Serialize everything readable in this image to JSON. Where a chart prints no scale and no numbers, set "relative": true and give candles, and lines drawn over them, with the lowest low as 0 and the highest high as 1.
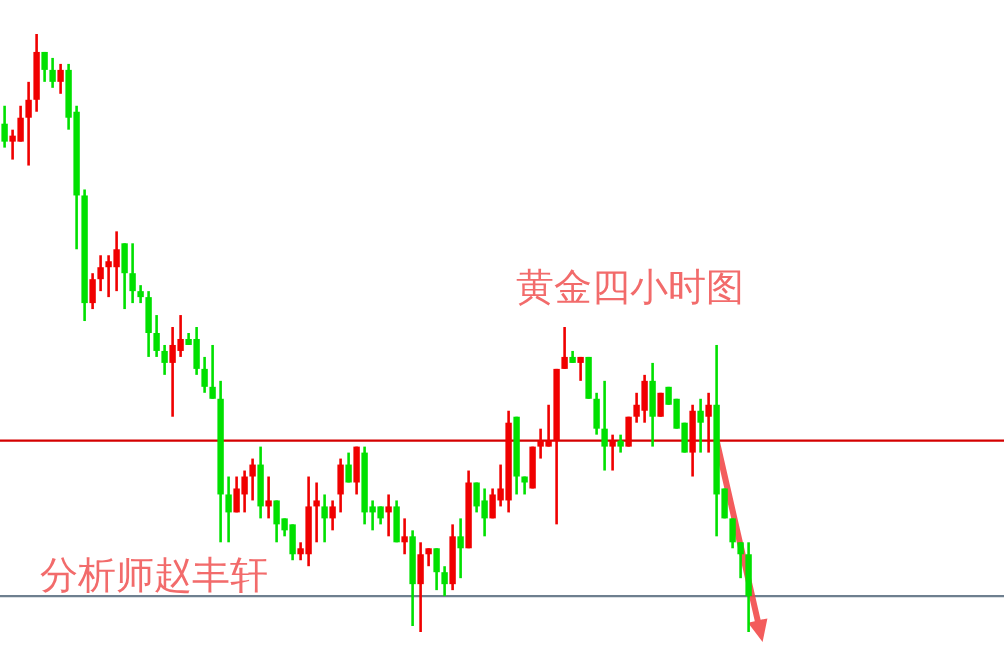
{
  "chart_data": {
    "type": "candlestick",
    "title": "黄金四小时图",
    "annotations": [
      "分析师赵丰轩"
    ],
    "relative": true,
    "categories": [
      null,
      null,
      null,
      null,
      null,
      null,
      null,
      null,
      null,
      null,
      null,
      null,
      null,
      null,
      null,
      null,
      null,
      null,
      null,
      null,
      null,
      null,
      null,
      null,
      null,
      null,
      null,
      null,
      null,
      null,
      null,
      null,
      null,
      null,
      null,
      null,
      null,
      null,
      null,
      null,
      null,
      null,
      null,
      null,
      null,
      null,
      null,
      null,
      null,
      null,
      null,
      null,
      null,
      null,
      null,
      null,
      null,
      null,
      null,
      null,
      null,
      null,
      null,
      null,
      null,
      null,
      null,
      null,
      null,
      null,
      null,
      null,
      null,
      null,
      null,
      null,
      null,
      null,
      null,
      null,
      null,
      null,
      null,
      null,
      null,
      null,
      null,
      null,
      null,
      null,
      null,
      null,
      null,
      null
    ],
    "ohlc": [
      [
        0.85,
        0.88,
        0.81,
        0.82
      ],
      [
        0.82,
        0.84,
        0.79,
        0.83
      ],
      [
        0.82,
        0.88,
        0.82,
        0.86
      ],
      [
        0.86,
        0.92,
        0.78,
        0.89
      ],
      [
        0.89,
        1.0,
        0.87,
        0.97
      ],
      [
        0.97,
        0.97,
        0.92,
        0.94
      ],
      [
        0.94,
        0.96,
        0.91,
        0.92
      ],
      [
        0.92,
        0.95,
        0.9,
        0.94
      ],
      [
        0.94,
        0.95,
        0.84,
        0.86
      ],
      [
        0.87,
        0.88,
        0.64,
        0.73
      ],
      [
        0.73,
        0.74,
        0.52,
        0.55
      ],
      [
        0.55,
        0.6,
        0.54,
        0.59
      ],
      [
        0.59,
        0.63,
        0.57,
        0.61
      ],
      [
        0.61,
        0.63,
        0.56,
        0.62
      ],
      [
        0.61,
        0.67,
        0.57,
        0.64
      ],
      [
        0.65,
        0.65,
        0.54,
        0.6
      ],
      [
        0.6,
        0.65,
        0.55,
        0.57
      ],
      [
        0.57,
        0.58,
        0.55,
        0.56
      ],
      [
        0.56,
        0.57,
        0.46,
        0.5
      ],
      [
        0.5,
        0.53,
        0.46,
        0.47
      ],
      [
        0.47,
        0.48,
        0.43,
        0.45
      ],
      [
        0.45,
        0.51,
        0.36,
        0.48
      ],
      [
        0.47,
        0.53,
        0.46,
        0.49
      ],
      [
        0.49,
        0.5,
        0.48,
        0.48
      ],
      [
        0.49,
        0.51,
        0.43,
        0.44
      ],
      [
        0.44,
        0.46,
        0.4,
        0.41
      ],
      [
        0.41,
        0.48,
        0.39,
        0.39
      ],
      [
        0.39,
        0.42,
        0.15,
        0.23
      ],
      [
        0.23,
        0.26,
        0.15,
        0.2
      ],
      [
        0.2,
        0.26,
        0.2,
        0.24
      ],
      [
        0.23,
        0.27,
        0.2,
        0.26
      ],
      [
        0.26,
        0.29,
        0.22,
        0.28
      ],
      [
        0.28,
        0.31,
        0.19,
        0.21
      ],
      [
        0.21,
        0.26,
        0.19,
        0.22
      ],
      [
        0.22,
        0.22,
        0.15,
        0.18
      ],
      [
        0.19,
        0.19,
        0.16,
        0.17
      ],
      [
        0.18,
        0.18,
        0.12,
        0.13
      ],
      [
        0.13,
        0.15,
        0.12,
        0.14
      ],
      [
        0.13,
        0.26,
        0.11,
        0.21
      ],
      [
        0.21,
        0.25,
        0.15,
        0.22
      ],
      [
        0.21,
        0.23,
        0.15,
        0.19
      ],
      [
        0.19,
        0.22,
        0.17,
        0.21
      ],
      [
        0.23,
        0.29,
        0.2,
        0.28
      ],
      [
        0.28,
        0.3,
        0.25,
        0.25
      ],
      [
        0.25,
        0.31,
        0.23,
        0.31
      ],
      [
        0.3,
        0.31,
        0.18,
        0.2
      ],
      [
        0.21,
        0.22,
        0.17,
        0.2
      ],
      [
        0.21,
        0.21,
        0.18,
        0.19
      ],
      [
        0.2,
        0.23,
        0.16,
        0.21
      ],
      [
        0.21,
        0.22,
        0.15,
        0.15
      ],
      [
        0.15,
        0.19,
        0.13,
        0.16
      ],
      [
        0.16,
        0.17,
        0.01,
        0.08
      ],
      [
        0.08,
        0.15,
        0.0,
        0.13
      ],
      [
        0.13,
        0.14,
        0.11,
        0.14
      ],
      [
        0.14,
        0.14,
        0.07,
        0.1
      ],
      [
        0.1,
        0.11,
        0.06,
        0.08
      ],
      [
        0.08,
        0.18,
        0.07,
        0.16
      ],
      [
        0.16,
        0.19,
        0.09,
        0.14
      ],
      [
        0.14,
        0.27,
        0.14,
        0.25
      ],
      [
        0.25,
        0.25,
        0.2,
        0.21
      ],
      [
        0.22,
        0.24,
        0.16,
        0.19
      ],
      [
        0.19,
        0.24,
        0.19,
        0.23
      ],
      [
        0.22,
        0.28,
        0.21,
        0.24
      ],
      [
        0.22,
        0.37,
        0.2,
        0.35
      ],
      [
        0.36,
        0.36,
        0.23,
        0.26
      ],
      [
        0.26,
        0.26,
        0.23,
        0.25
      ],
      [
        0.24,
        0.31,
        0.24,
        0.31
      ],
      [
        0.31,
        0.34,
        0.29,
        0.32
      ],
      [
        0.31,
        0.38,
        0.31,
        0.32
      ],
      [
        0.32,
        0.44,
        0.18,
        0.44
      ],
      [
        0.44,
        0.51,
        0.44,
        0.46
      ],
      [
        0.46,
        0.47,
        0.45,
        0.45
      ],
      [
        0.45,
        0.46,
        0.42,
        0.46
      ],
      [
        0.46,
        0.46,
        0.39,
        0.39
      ],
      [
        0.39,
        0.4,
        0.33,
        0.34
      ],
      [
        0.34,
        0.42,
        0.27,
        0.31
      ],
      [
        0.31,
        0.33,
        0.27,
        0.32
      ],
      [
        0.32,
        0.33,
        0.3,
        0.31
      ],
      [
        0.31,
        0.36,
        0.31,
        0.36
      ],
      [
        0.36,
        0.4,
        0.35,
        0.38
      ],
      [
        0.37,
        0.43,
        0.35,
        0.42
      ],
      [
        0.42,
        0.45,
        0.31,
        0.36
      ],
      [
        0.36,
        0.4,
        0.36,
        0.4
      ],
      [
        0.41,
        0.41,
        0.38,
        0.38
      ],
      [
        0.39,
        0.39,
        0.34,
        0.34
      ],
      [
        0.35,
        0.35,
        0.3,
        0.3
      ],
      [
        0.3,
        0.38,
        0.26,
        0.37
      ],
      [
        0.37,
        0.39,
        0.3,
        0.35
      ],
      [
        0.36,
        0.4,
        0.3,
        0.38
      ],
      [
        0.38,
        0.48,
        0.16,
        0.23
      ],
      [
        0.24,
        0.24,
        0.19,
        0.19
      ],
      [
        0.19,
        0.19,
        0.14,
        0.15
      ],
      [
        0.15,
        0.15,
        0.09,
        0.13
      ],
      [
        0.13,
        0.15,
        0.0,
        0.06
      ]
    ],
    "colors": [
      "#00e000",
      "#f00000",
      "#f00000",
      "#f00000",
      "#f00000",
      "#00e000",
      "#00e000",
      "#f00000",
      "#00e000",
      "#00e000",
      "#00e000",
      "#f00000",
      "#f00000",
      "#f00000",
      "#f00000",
      "#00e000",
      "#00e000",
      "#00e000",
      "#00e000",
      "#00e000",
      "#00e000",
      "#f00000",
      "#f00000",
      "#00e000",
      "#00e000",
      "#00e000",
      "#00e000",
      "#00e000",
      "#00e000",
      "#f00000",
      "#f00000",
      "#f00000",
      "#00e000",
      "#f00000",
      "#00e000",
      "#00e000",
      "#00e000",
      "#f00000",
      "#f00000",
      "#f00000",
      "#00e000",
      "#f00000",
      "#f00000",
      "#00e000",
      "#f00000",
      "#00e000",
      "#00e000",
      "#00e000",
      "#f00000",
      "#00e000",
      "#f00000",
      "#00e000",
      "#f00000",
      "#f00000",
      "#00e000",
      "#00e000",
      "#f00000",
      "#00e000",
      "#f00000",
      "#00e000",
      "#00e000",
      "#f00000",
      "#f00000",
      "#f00000",
      "#00e000",
      "#00e000",
      "#f00000",
      "#f00000",
      "#f00000",
      "#f00000",
      "#f00000",
      "#00e000",
      "#f00000",
      "#00e000",
      "#00e000",
      "#00e000",
      "#f00000",
      "#00e000",
      "#f00000",
      "#f00000",
      "#f00000",
      "#00e000",
      "#f00000",
      "#00e000",
      "#00e000",
      "#00e000",
      "#f00000",
      "#00e000",
      "#f00000",
      "#00e000",
      "#00e000",
      "#00e000",
      "#00e000",
      "#00e000"
    ],
    "ref_lines": [
      {
        "axis": "y",
        "value": 0.32,
        "color": "#d40000"
      },
      {
        "axis": "y",
        "value": 0.06,
        "color": "#6e7f8f"
      }
    ]
  }
}
